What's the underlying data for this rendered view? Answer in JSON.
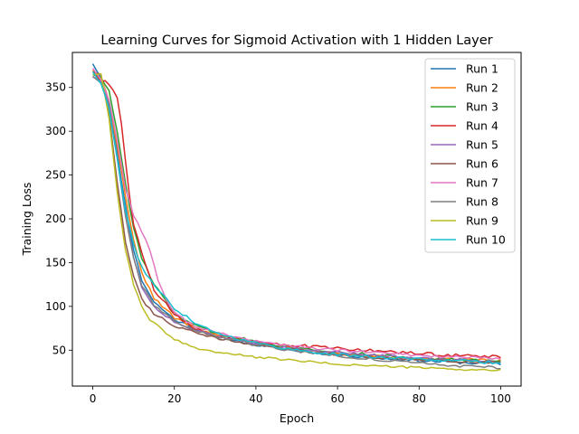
{
  "chart_data": {
    "type": "line",
    "title": "Learning Curves for Sigmoid Activation with 1 Hidden Layer",
    "xlabel": "Epoch",
    "ylabel": "Training Loss",
    "xlim": [
      -5,
      105
    ],
    "ylim": [
      9,
      390
    ],
    "xticks": [
      0,
      20,
      40,
      60,
      80,
      100
    ],
    "yticks": [
      50,
      100,
      150,
      200,
      250,
      300,
      350
    ],
    "grid": false,
    "legend_position": "top-right",
    "series": [
      {
        "name": "Run 1",
        "color": "#1f77b4",
        "knots": [
          [
            0,
            377
          ],
          [
            2,
            362
          ],
          [
            4,
            330
          ],
          [
            6,
            275
          ],
          [
            8,
            215
          ],
          [
            10,
            165
          ],
          [
            12,
            130
          ],
          [
            15,
            105
          ],
          [
            20,
            85
          ],
          [
            25,
            75
          ],
          [
            30,
            67
          ],
          [
            40,
            56
          ],
          [
            50,
            49
          ],
          [
            60,
            45
          ],
          [
            70,
            41
          ],
          [
            80,
            38
          ],
          [
            90,
            36
          ],
          [
            100,
            34
          ]
        ],
        "noise": 1.6,
        "seed": 11
      },
      {
        "name": "Run 2",
        "color": "#ff7f0e",
        "knots": [
          [
            0,
            370
          ],
          [
            2,
            360
          ],
          [
            4,
            335
          ],
          [
            6,
            285
          ],
          [
            8,
            225
          ],
          [
            10,
            175
          ],
          [
            12,
            138
          ],
          [
            15,
            110
          ],
          [
            20,
            87
          ],
          [
            25,
            76
          ],
          [
            30,
            68
          ],
          [
            40,
            58
          ],
          [
            50,
            51
          ],
          [
            60,
            46
          ],
          [
            70,
            43
          ],
          [
            80,
            41
          ],
          [
            90,
            39
          ],
          [
            100,
            38
          ]
        ],
        "noise": 1.6,
        "seed": 22
      },
      {
        "name": "Run 3",
        "color": "#2ca02c",
        "knots": [
          [
            0,
            365
          ],
          [
            2,
            362
          ],
          [
            4,
            345
          ],
          [
            6,
            300
          ],
          [
            8,
            240
          ],
          [
            10,
            190
          ],
          [
            12,
            155
          ],
          [
            15,
            125
          ],
          [
            20,
            92
          ],
          [
            25,
            78
          ],
          [
            30,
            70
          ],
          [
            40,
            60
          ],
          [
            50,
            53
          ],
          [
            60,
            48
          ],
          [
            70,
            44
          ],
          [
            80,
            41
          ],
          [
            90,
            39
          ],
          [
            100,
            37
          ]
        ],
        "noise": 1.8,
        "seed": 33
      },
      {
        "name": "Run 4",
        "color": "#d62728",
        "knots": [
          [
            0,
            368
          ],
          [
            2,
            358
          ],
          [
            4,
            354
          ],
          [
            6,
            338
          ],
          [
            7,
            310
          ],
          [
            8,
            265
          ],
          [
            9,
            225
          ],
          [
            10,
            195
          ],
          [
            12,
            160
          ],
          [
            15,
            120
          ],
          [
            20,
            90
          ],
          [
            25,
            75
          ],
          [
            30,
            67
          ],
          [
            40,
            60
          ],
          [
            50,
            55
          ],
          [
            60,
            52
          ],
          [
            70,
            49
          ],
          [
            80,
            46
          ],
          [
            90,
            44
          ],
          [
            100,
            42
          ]
        ],
        "noise": 2.0,
        "seed": 44
      },
      {
        "name": "Run 5",
        "color": "#9467bd",
        "knots": [
          [
            0,
            362
          ],
          [
            2,
            358
          ],
          [
            4,
            330
          ],
          [
            6,
            270
          ],
          [
            8,
            205
          ],
          [
            10,
            155
          ],
          [
            12,
            122
          ],
          [
            15,
            100
          ],
          [
            20,
            82
          ],
          [
            25,
            73
          ],
          [
            30,
            66
          ],
          [
            40,
            57
          ],
          [
            50,
            51
          ],
          [
            60,
            47
          ],
          [
            70,
            44
          ],
          [
            80,
            41
          ],
          [
            90,
            39
          ],
          [
            100,
            37
          ]
        ],
        "noise": 1.5,
        "seed": 55
      },
      {
        "name": "Run 6",
        "color": "#8c564b",
        "knots": [
          [
            0,
            368
          ],
          [
            2,
            366
          ],
          [
            4,
            320
          ],
          [
            6,
            240
          ],
          [
            8,
            175
          ],
          [
            10,
            135
          ],
          [
            12,
            108
          ],
          [
            15,
            92
          ],
          [
            20,
            78
          ],
          [
            25,
            70
          ],
          [
            30,
            64
          ],
          [
            40,
            56
          ],
          [
            50,
            50
          ],
          [
            60,
            45
          ],
          [
            70,
            41
          ],
          [
            80,
            39
          ],
          [
            90,
            37
          ],
          [
            100,
            36
          ]
        ],
        "noise": 1.5,
        "seed": 66
      },
      {
        "name": "Run 7",
        "color": "#e377c2",
        "knots": [
          [
            0,
            372
          ],
          [
            2,
            360
          ],
          [
            4,
            335
          ],
          [
            6,
            290
          ],
          [
            8,
            235
          ],
          [
            10,
            205
          ],
          [
            12,
            185
          ],
          [
            14,
            165
          ],
          [
            16,
            130
          ],
          [
            18,
            108
          ],
          [
            20,
            92
          ],
          [
            25,
            78
          ],
          [
            30,
            70
          ],
          [
            40,
            60
          ],
          [
            50,
            54
          ],
          [
            60,
            50
          ],
          [
            70,
            47
          ],
          [
            80,
            44
          ],
          [
            90,
            42
          ],
          [
            100,
            40
          ]
        ],
        "noise": 1.6,
        "seed": 77
      },
      {
        "name": "Run 8",
        "color": "#7f7f7f",
        "knots": [
          [
            0,
            363
          ],
          [
            2,
            356
          ],
          [
            4,
            330
          ],
          [
            6,
            270
          ],
          [
            8,
            205
          ],
          [
            10,
            155
          ],
          [
            12,
            125
          ],
          [
            15,
            102
          ],
          [
            20,
            83
          ],
          [
            25,
            73
          ],
          [
            30,
            66
          ],
          [
            40,
            56
          ],
          [
            50,
            49
          ],
          [
            60,
            44
          ],
          [
            70,
            39
          ],
          [
            80,
            35
          ],
          [
            90,
            32
          ],
          [
            100,
            30
          ]
        ],
        "noise": 1.6,
        "seed": 88
      },
      {
        "name": "Run 9",
        "color": "#bcbd22",
        "knots": [
          [
            0,
            365
          ],
          [
            2,
            366
          ],
          [
            4,
            315
          ],
          [
            6,
            230
          ],
          [
            8,
            165
          ],
          [
            10,
            125
          ],
          [
            12,
            100
          ],
          [
            14,
            85
          ],
          [
            16,
            78
          ],
          [
            18,
            68
          ],
          [
            20,
            62
          ],
          [
            25,
            53
          ],
          [
            30,
            48
          ],
          [
            40,
            42
          ],
          [
            50,
            38
          ],
          [
            60,
            34
          ],
          [
            70,
            32
          ],
          [
            80,
            30
          ],
          [
            90,
            28
          ],
          [
            100,
            27
          ]
        ],
        "noise": 1.2,
        "seed": 99
      },
      {
        "name": "Run 10",
        "color": "#17becf",
        "knots": [
          [
            0,
            368
          ],
          [
            2,
            355
          ],
          [
            4,
            325
          ],
          [
            6,
            268
          ],
          [
            8,
            210
          ],
          [
            10,
            170
          ],
          [
            12,
            145
          ],
          [
            15,
            125
          ],
          [
            18,
            108
          ],
          [
            20,
            98
          ],
          [
            25,
            82
          ],
          [
            30,
            70
          ],
          [
            40,
            58
          ],
          [
            50,
            50
          ],
          [
            60,
            45
          ],
          [
            70,
            42
          ],
          [
            80,
            40
          ],
          [
            90,
            38
          ],
          [
            100,
            35
          ]
        ],
        "noise": 1.7,
        "seed": 111
      }
    ]
  }
}
